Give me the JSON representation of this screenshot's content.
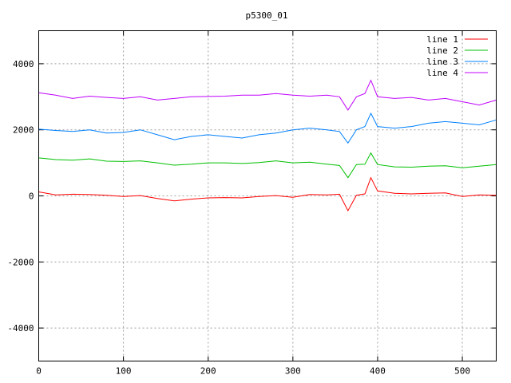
{
  "chart_data": {
    "type": "line",
    "title": "p5300_01",
    "xlabel": "",
    "ylabel": "",
    "xlim": [
      0,
      540
    ],
    "ylim": [
      -5000,
      5000
    ],
    "xticks": [
      0,
      100,
      200,
      300,
      400,
      500
    ],
    "yticks": [
      -4000,
      -2000,
      0,
      2000,
      4000
    ],
    "grid": true,
    "legend_position": "top-right",
    "x": [
      0,
      20,
      40,
      60,
      80,
      100,
      120,
      140,
      160,
      180,
      200,
      220,
      240,
      260,
      280,
      300,
      320,
      340,
      355,
      365,
      375,
      385,
      392,
      400,
      420,
      440,
      460,
      480,
      500,
      520,
      540
    ],
    "series": [
      {
        "name": "line 1",
        "color": "#ff0000",
        "values": [
          120,
          30,
          50,
          40,
          20,
          -20,
          10,
          -80,
          -150,
          -100,
          -60,
          -50,
          -60,
          -20,
          10,
          -40,
          40,
          30,
          50,
          -450,
          20,
          60,
          550,
          150,
          80,
          60,
          80,
          90,
          -20,
          30,
          20
        ]
      },
      {
        "name": "line 2",
        "color": "#00c000",
        "values": [
          1150,
          1100,
          1080,
          1120,
          1050,
          1040,
          1060,
          1000,
          930,
          960,
          1000,
          1000,
          980,
          1010,
          1060,
          1000,
          1020,
          960,
          920,
          550,
          950,
          960,
          1300,
          950,
          880,
          870,
          900,
          910,
          850,
          900,
          950
        ]
      },
      {
        "name": "line 3",
        "color": "#0080ff",
        "values": [
          2020,
          1980,
          1950,
          2000,
          1900,
          1920,
          2000,
          1850,
          1700,
          1800,
          1850,
          1800,
          1750,
          1850,
          1900,
          2000,
          2050,
          2000,
          1950,
          1600,
          2000,
          2100,
          2500,
          2100,
          2050,
          2100,
          2200,
          2250,
          2200,
          2150,
          2300
        ]
      },
      {
        "name": "line 4",
        "color": "#c000ff",
        "values": [
          3120,
          3050,
          2950,
          3020,
          2980,
          2950,
          3000,
          2900,
          2950,
          3000,
          3010,
          3020,
          3050,
          3050,
          3100,
          3050,
          3020,
          3050,
          3000,
          2600,
          3000,
          3100,
          3500,
          3000,
          2950,
          2980,
          2900,
          2950,
          2850,
          2750,
          2900
        ]
      }
    ]
  }
}
